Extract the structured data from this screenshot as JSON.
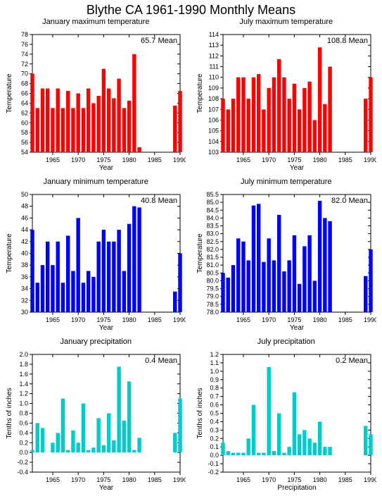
{
  "main_title": "Blythe CA   1961-1990 Monthly Means",
  "year_start": 1961,
  "year_end": 1990,
  "x_ticks": [
    1965,
    1970,
    1975,
    1980,
    1985,
    1990
  ],
  "panels": [
    {
      "title": "January maximum temperature",
      "mean_label": "65.7 Mean",
      "ylabel": "Temperature",
      "xlabel": "Year",
      "ymin": 54,
      "ymax": 78,
      "ytick_step": 2,
      "bar_color": "#ff0000",
      "values": [
        70,
        63,
        67,
        67,
        63,
        67,
        63,
        66.5,
        63,
        66,
        63,
        67,
        64,
        65.5,
        71,
        67,
        65,
        69,
        63,
        64.5,
        74,
        55,
        null,
        null,
        null,
        null,
        null,
        null,
        63.5,
        66.5
      ]
    },
    {
      "title": "July maximum temperature",
      "mean_label": "108.8 Mean",
      "ylabel": "Temperature",
      "xlabel": "Year",
      "ymin": 103,
      "ymax": 114,
      "ytick_step": 1,
      "bar_color": "#ff0000",
      "values": [
        108,
        107,
        108,
        110,
        110,
        108,
        110,
        110.3,
        107,
        109,
        110,
        111.7,
        110,
        108,
        109.4,
        107,
        109,
        109.6,
        106,
        112.8,
        107.5,
        111,
        null,
        null,
        null,
        null,
        null,
        null,
        108,
        110
      ]
    },
    {
      "title": "January minimum temperature",
      "mean_label": "40.8 Mean",
      "ylabel": "Temperature",
      "xlabel": "Year",
      "ymin": 30,
      "ymax": 50,
      "ytick_step": 2,
      "bar_color": "#0000ff",
      "values": [
        44,
        35,
        38,
        42,
        38,
        42,
        35,
        43,
        37,
        46,
        35,
        37,
        36,
        42,
        44,
        42,
        42,
        44,
        37,
        45,
        48,
        47.8,
        null,
        null,
        null,
        null,
        null,
        null,
        33.5,
        40
      ]
    },
    {
      "title": "July minimum temperature",
      "mean_label": "82.0 Mean",
      "ylabel": "Temperature",
      "xlabel": "Year",
      "ymin": 78,
      "ymax": 85.5,
      "ytick_step": 0.5,
      "bar_color": "#0000ff",
      "values": [
        80.5,
        80.2,
        81,
        82.7,
        82.5,
        81.3,
        84.8,
        84.9,
        81.2,
        82.7,
        81.3,
        84.2,
        80.6,
        81.3,
        82.9,
        79.8,
        82.2,
        82.9,
        80,
        85.1,
        84,
        83.8,
        null,
        null,
        null,
        null,
        null,
        null,
        80.3,
        82
      ]
    },
    {
      "title": "January precipitation",
      "mean_label": "0.4 Mean",
      "ylabel": "Tenths of inches",
      "xlabel": "Year",
      "ymin": -0.4,
      "ymax": 2,
      "ytick_step": 0.2,
      "bar_color": "#00cccc",
      "values": [
        0.05,
        0.6,
        0.5,
        0,
        0.2,
        0.4,
        1.1,
        0.05,
        0.45,
        0.2,
        1.0,
        0.05,
        0.1,
        0.7,
        0.15,
        0.8,
        0.25,
        1.75,
        0.65,
        1.45,
        0.05,
        0.3,
        null,
        null,
        null,
        null,
        null,
        null,
        0.4,
        1.1
      ]
    },
    {
      "title": "July precipitation",
      "mean_label": "0.2 Mean",
      "ylabel": "Tenths of inches",
      "xlabel": "Precipitation",
      "ymin": -0.2,
      "ymax": 1.2,
      "ytick_step": 0.1,
      "bar_color": "#00cccc",
      "values": [
        0.15,
        0.05,
        0.03,
        0.03,
        0.03,
        0.2,
        0.6,
        0.03,
        0.03,
        1.05,
        0.05,
        0.5,
        0.03,
        0.1,
        0.75,
        0.25,
        0.3,
        0.2,
        0.15,
        0.4,
        0.1,
        0.1,
        null,
        null,
        null,
        null,
        null,
        null,
        0.35,
        0.25
      ]
    }
  ]
}
